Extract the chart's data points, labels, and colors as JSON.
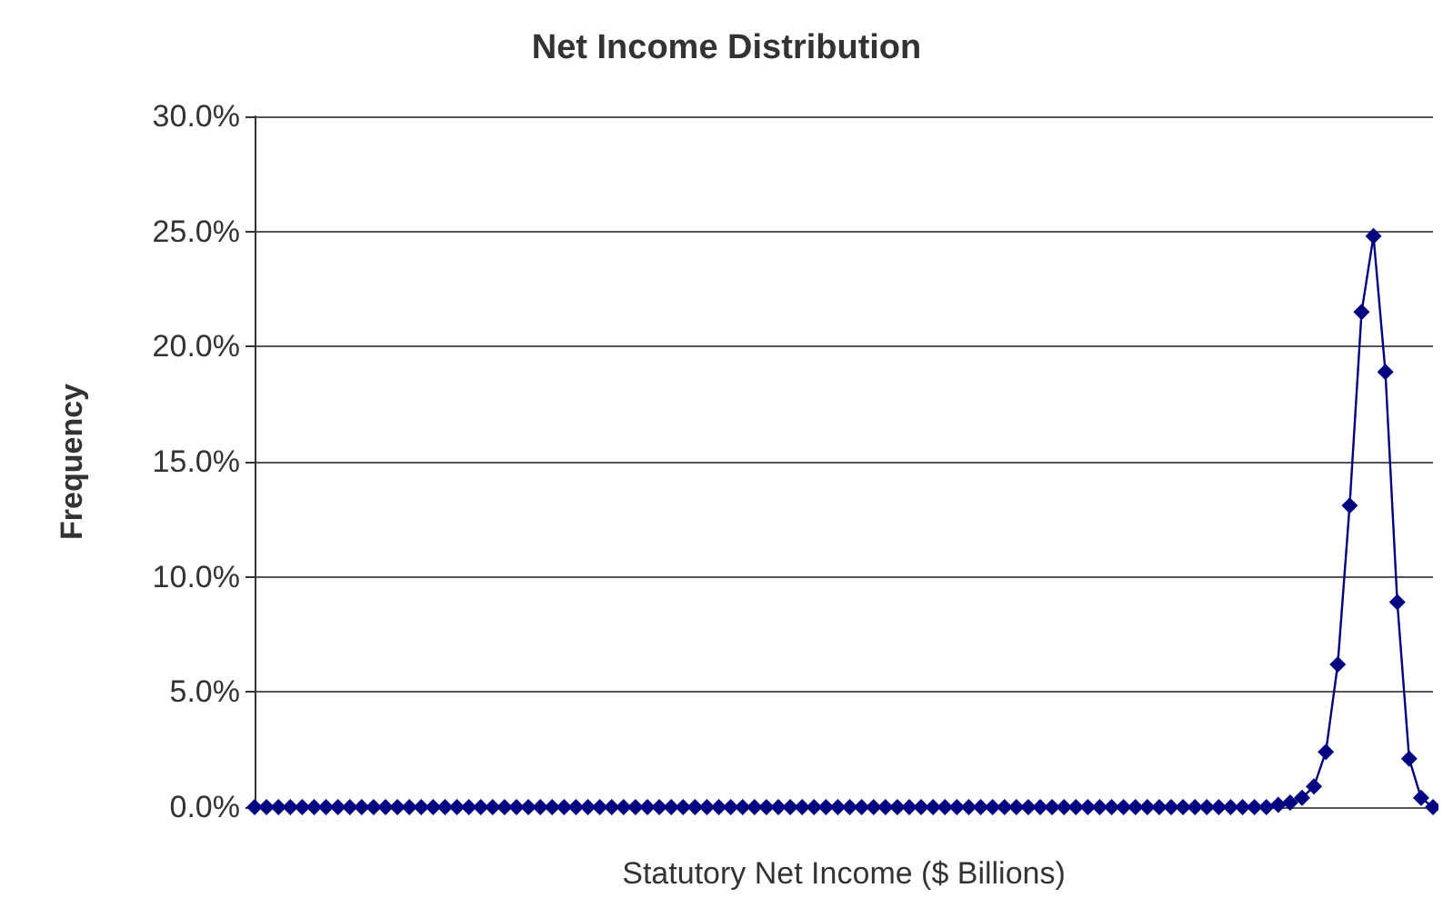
{
  "chart_data": {
    "type": "line",
    "title": "Net Income Distribution",
    "xlabel": "Statutory Net Income ($ Billions)",
    "ylabel": "Frequency",
    "categories": [
      null,
      null,
      null,
      null,
      null,
      null,
      null,
      null,
      null,
      null,
      null,
      null,
      null,
      null,
      null,
      null,
      null,
      null,
      null,
      null,
      null,
      null,
      null,
      null,
      null,
      null,
      null,
      null,
      null,
      null,
      null,
      null,
      null,
      null,
      null,
      null,
      null,
      null,
      null,
      null,
      null,
      null,
      null,
      null,
      null,
      null,
      null,
      null,
      null,
      null,
      null,
      null,
      null,
      null,
      null,
      null,
      null,
      null,
      null,
      null,
      null,
      null,
      null,
      null,
      null,
      null,
      null,
      null,
      null,
      null,
      null,
      null,
      null,
      null,
      null,
      null,
      null,
      null,
      null,
      null,
      null,
      null,
      null,
      null,
      null,
      null,
      null,
      null,
      null,
      null,
      null,
      null,
      null,
      null,
      null,
      null,
      null,
      null,
      null,
      null
    ],
    "series": [
      {
        "color": "#000080",
        "values": [
          0,
          0,
          0,
          0,
          0,
          0,
          0,
          0,
          0,
          0,
          0,
          0,
          0,
          0,
          0,
          0,
          0,
          0,
          0,
          0,
          0,
          0,
          0,
          0,
          0,
          0,
          0,
          0,
          0,
          0,
          0,
          0,
          0,
          0,
          0,
          0,
          0,
          0,
          0,
          0,
          0,
          0,
          0,
          0,
          0,
          0,
          0,
          0,
          0,
          0,
          0,
          0,
          0,
          0,
          0,
          0,
          0,
          0,
          0,
          0,
          0,
          0,
          0,
          0,
          0,
          0,
          0,
          0,
          0,
          0,
          0,
          0,
          0,
          0,
          0,
          0,
          0,
          0,
          0,
          0,
          0,
          0,
          0,
          0,
          0,
          0,
          0.1,
          0.2,
          0.4,
          0.9,
          2.4,
          6.2,
          13.1,
          21.5,
          24.8,
          18.9,
          8.9,
          2.1,
          0.4,
          0
        ]
      }
    ],
    "ylim": [
      0,
      30
    ],
    "yticks": [
      {
        "value": 0,
        "label": "0.0%"
      },
      {
        "value": 5,
        "label": "5.0%"
      },
      {
        "value": 10,
        "label": "10.0%"
      },
      {
        "value": 15,
        "label": "15.0%"
      },
      {
        "value": 20,
        "label": "20.0%"
      },
      {
        "value": 25,
        "label": "25.0%"
      },
      {
        "value": 30,
        "label": "30.0%"
      }
    ],
    "grid": "y",
    "marker": "diamond",
    "line_style": "solid"
  }
}
